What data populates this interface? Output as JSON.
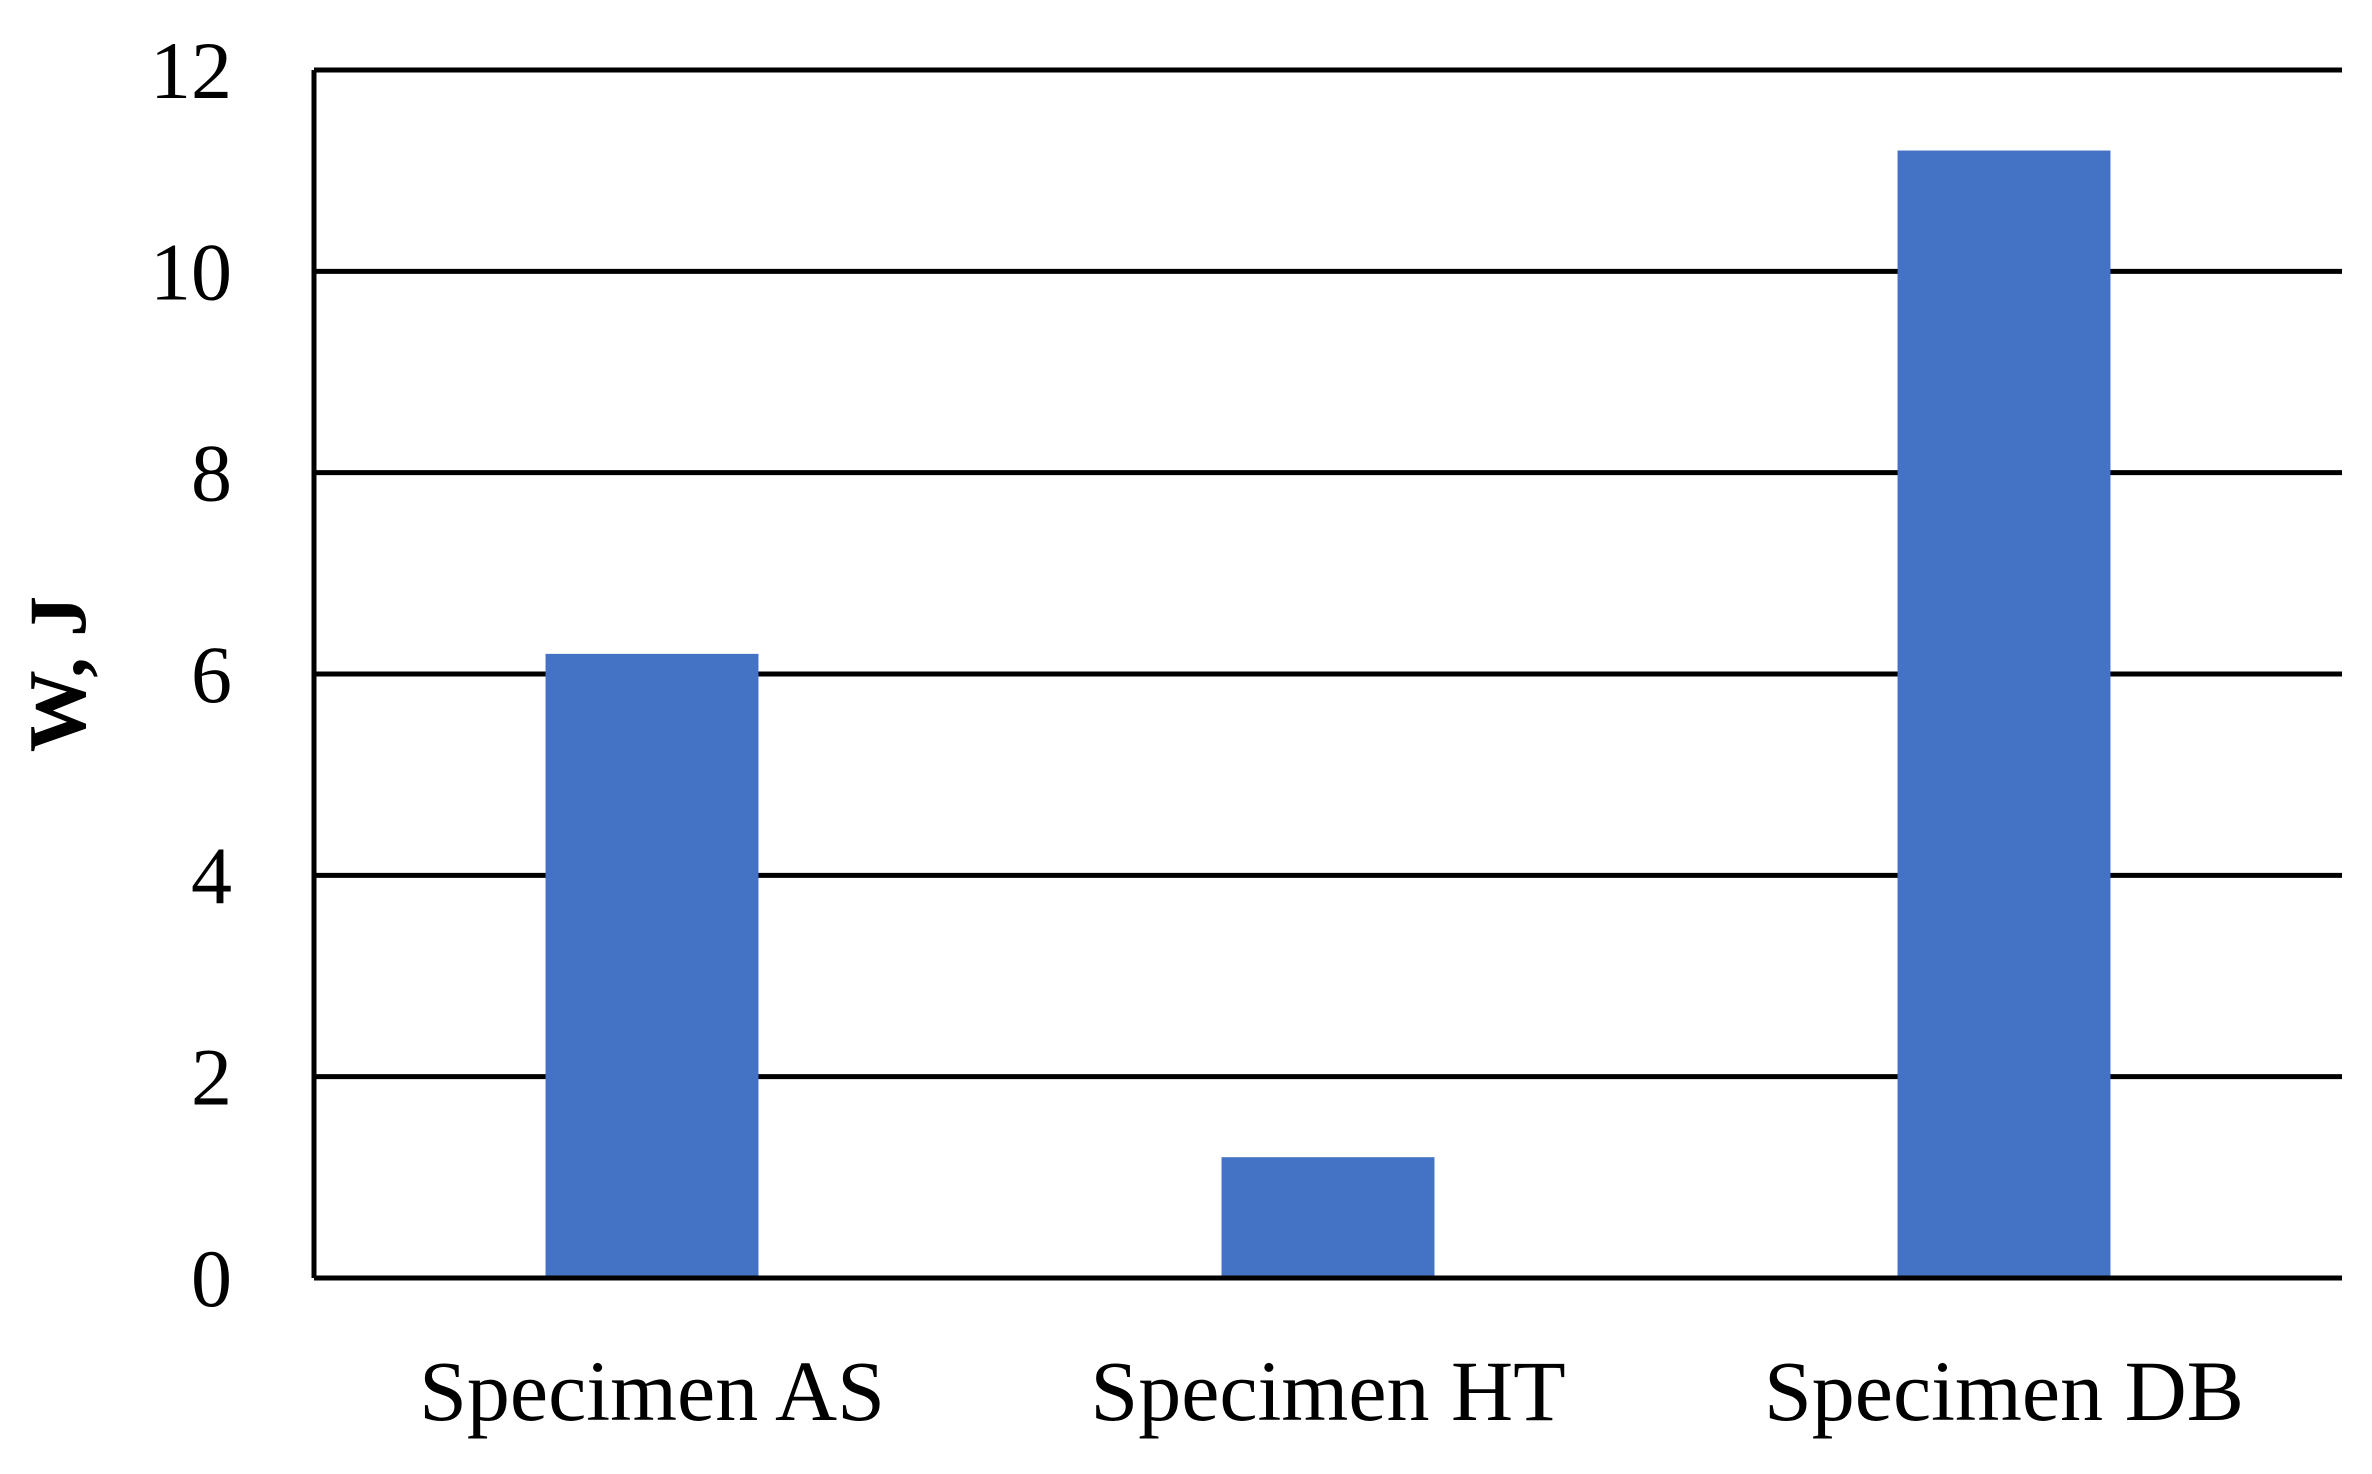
{
  "chart_data": {
    "type": "bar",
    "title": "",
    "xlabel": "",
    "ylabel": "W, J",
    "categories": [
      "Specimen AS",
      "Specimen HT",
      "Specimen DB"
    ],
    "series": [
      {
        "values": [
          6.2,
          1.2,
          11.2
        ]
      }
    ],
    "ylim": [
      0,
      12
    ],
    "yticks": [
      0,
      2,
      4,
      6,
      8,
      10,
      12
    ],
    "grid": true,
    "legend": "none",
    "colors": {
      "bar": "#4472C4",
      "grid": "#000000",
      "axis": "#000000"
    }
  }
}
